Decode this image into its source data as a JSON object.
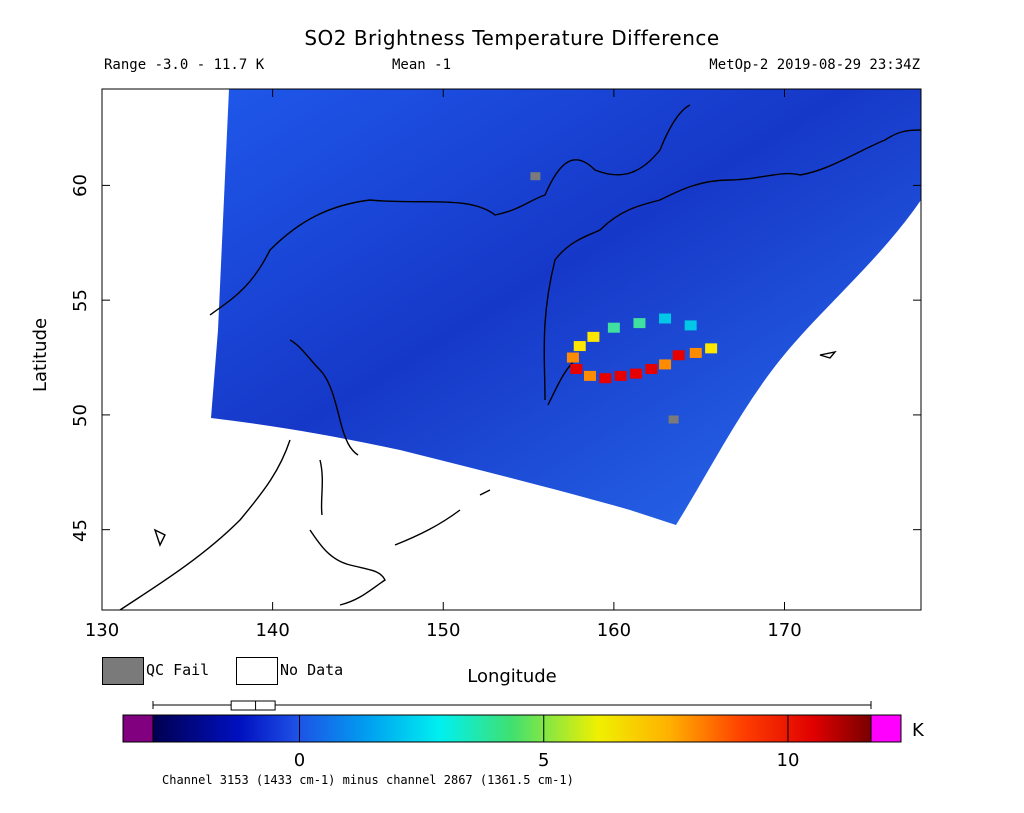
{
  "title": "SO2 Brightness Temperature Difference",
  "subtitle": {
    "range": "Range -3.0 - 11.7 K",
    "mean": "Mean -1",
    "satellite_time": "MetOp-2 2019-08-29 23:34Z"
  },
  "axes": {
    "ylabel": "Latitude",
    "xlabel": "Longitude",
    "x_ticks": [
      130,
      140,
      150,
      160,
      170
    ],
    "y_ticks": [
      45,
      50,
      55,
      60
    ],
    "x_range": [
      130,
      178
    ],
    "y_range": [
      41.5,
      64.2
    ]
  },
  "legend": {
    "qc_fail": "QC Fail",
    "no_data": "No Data",
    "qc_fail_color": "#7a7a7a",
    "no_data_color": "#ffffff"
  },
  "colorbar": {
    "unit": "K",
    "range": [
      -3.0,
      11.7
    ],
    "ticks": [
      0,
      5,
      10
    ],
    "tick_labels": [
      "0",
      "5",
      "10"
    ],
    "under_color": "#800080",
    "over_color": "#ff00ff",
    "boxplot": {
      "min": -3.0,
      "q1": -1.4,
      "median": -0.9,
      "q3": -0.5,
      "max": 11.7
    },
    "channel_note": "Channel 3153 (1433 cm-1) minus channel 2867 (1361.5 cm-1)"
  },
  "data_colors": {
    "background_field": "#1e50e6",
    "plume_low": "#00c8e6",
    "plume_mid": "#ffe600",
    "plume_high": "#e60000"
  },
  "plume": {
    "description": "SO2 plume arc over Kamchatka region",
    "points": [
      {
        "lon": 164.5,
        "lat": 53.9,
        "val": 3
      },
      {
        "lon": 163.0,
        "lat": 54.2,
        "val": 3
      },
      {
        "lon": 161.5,
        "lat": 54.0,
        "val": 4
      },
      {
        "lon": 160.0,
        "lat": 53.8,
        "val": 4
      },
      {
        "lon": 158.8,
        "lat": 53.4,
        "val": 5
      },
      {
        "lon": 158.0,
        "lat": 53.0,
        "val": 6
      },
      {
        "lon": 157.6,
        "lat": 52.5,
        "val": 7
      },
      {
        "lon": 157.8,
        "lat": 52.0,
        "val": 9
      },
      {
        "lon": 158.6,
        "lat": 51.7,
        "val": 8
      },
      {
        "lon": 159.5,
        "lat": 51.6,
        "val": 10
      },
      {
        "lon": 160.4,
        "lat": 51.7,
        "val": 9
      },
      {
        "lon": 161.3,
        "lat": 51.8,
        "val": 10
      },
      {
        "lon": 162.2,
        "lat": 52.0,
        "val": 10
      },
      {
        "lon": 163.0,
        "lat": 52.2,
        "val": 8
      },
      {
        "lon": 163.8,
        "lat": 52.6,
        "val": 11
      },
      {
        "lon": 164.8,
        "lat": 52.7,
        "val": 7
      },
      {
        "lon": 165.7,
        "lat": 52.9,
        "val": 5
      }
    ],
    "qc_fail_points": [
      {
        "lon": 155.4,
        "lat": 60.4
      },
      {
        "lon": 163.5,
        "lat": 49.8
      }
    ]
  }
}
